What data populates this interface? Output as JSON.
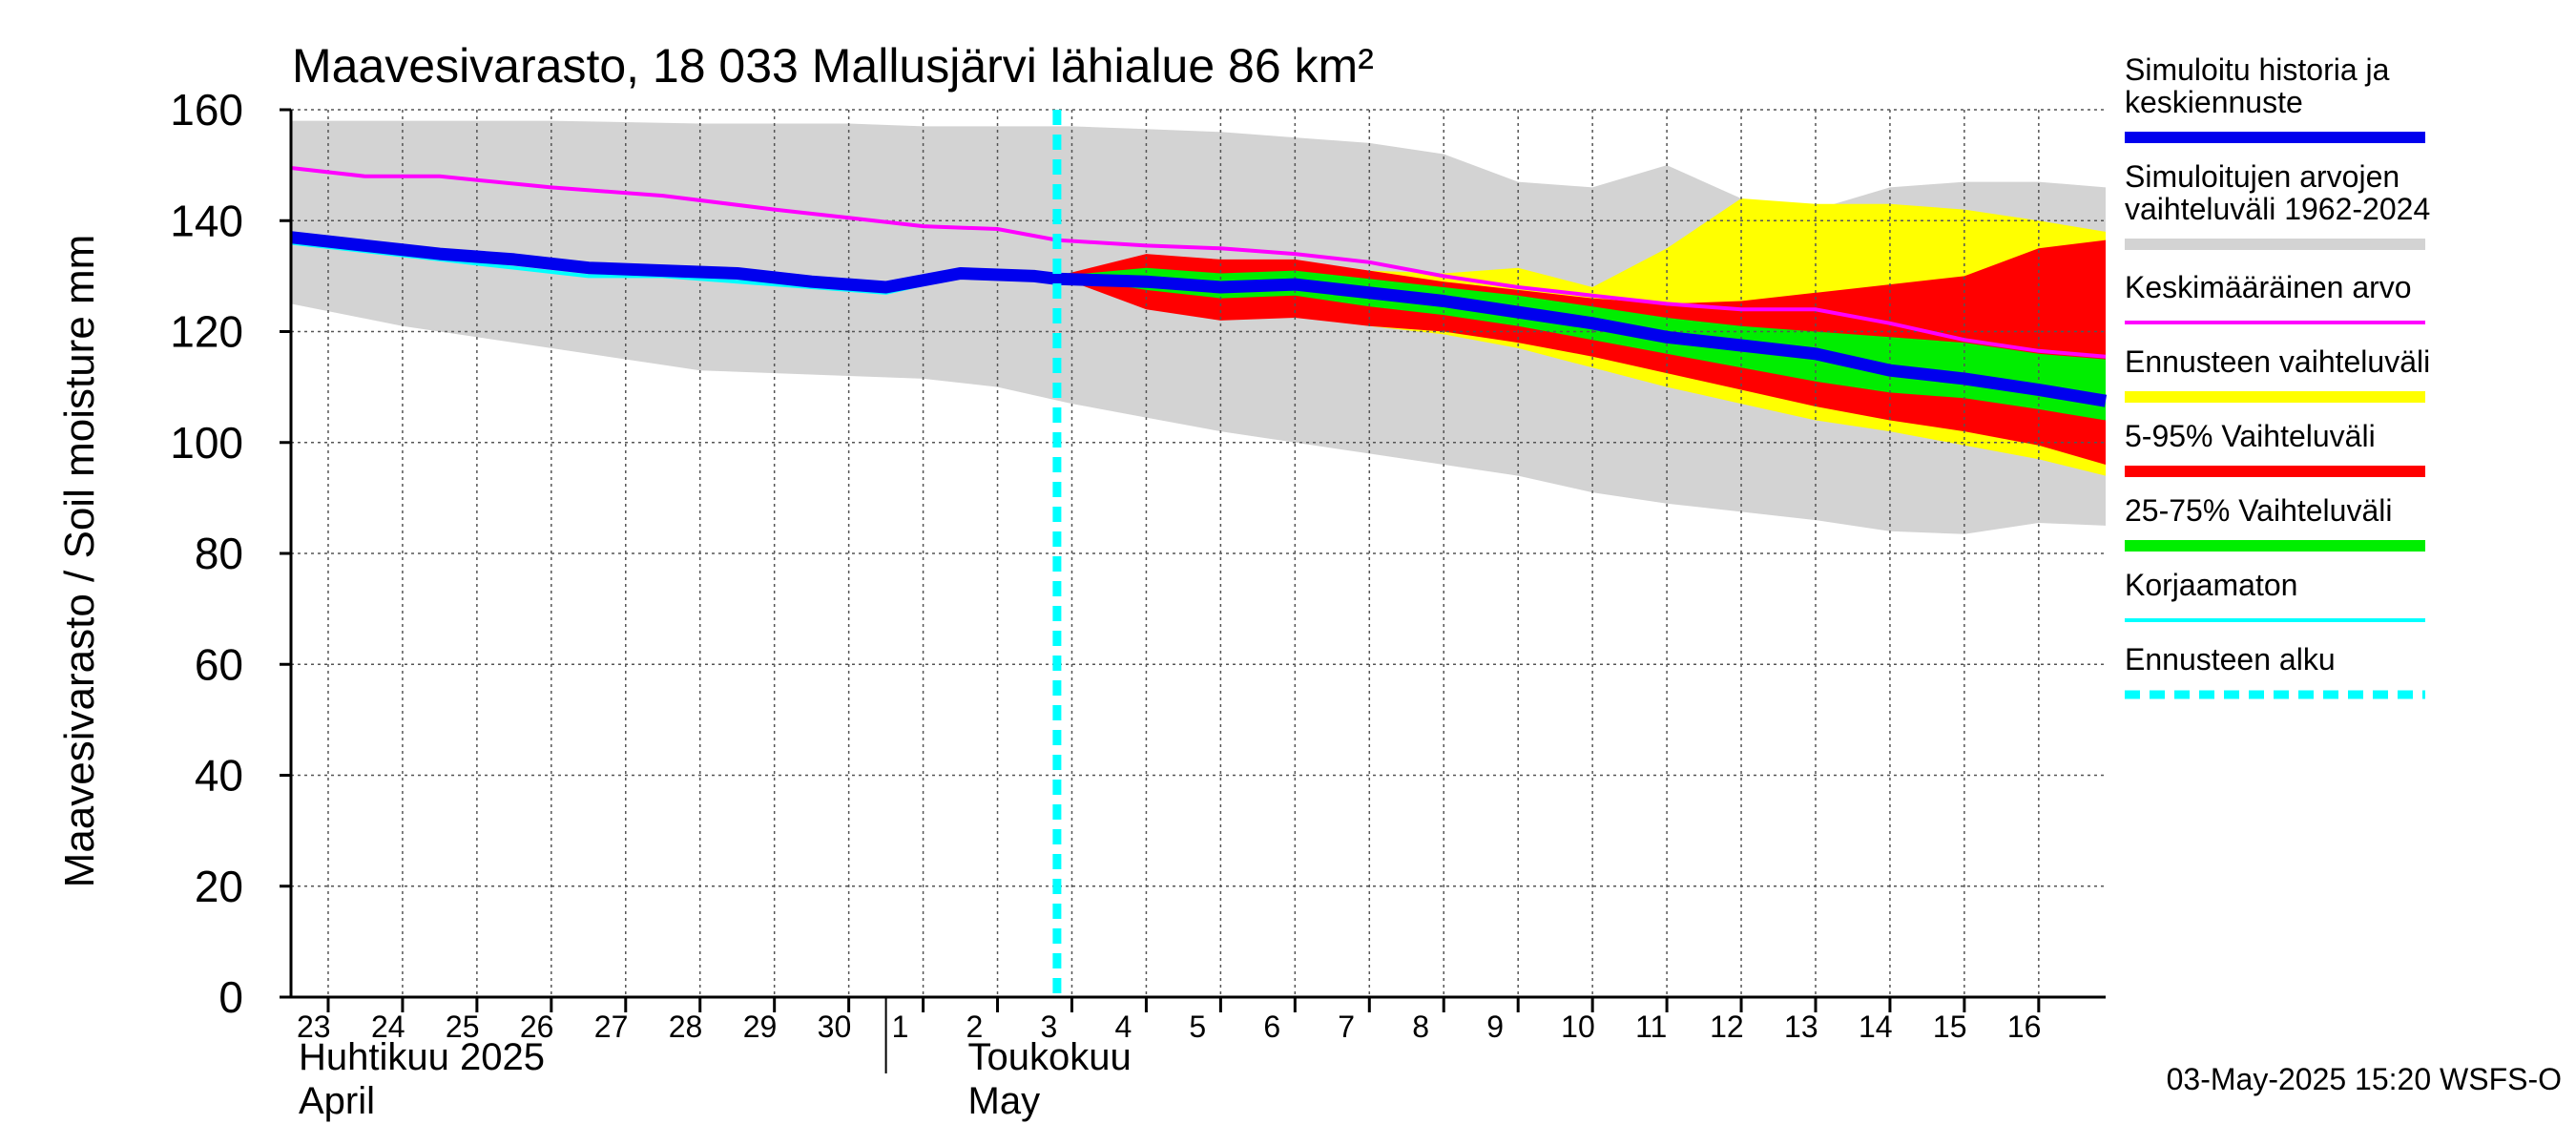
{
  "chart_data": {
    "type": "area",
    "title": "Maavesivarasto, 18 033 Mallusjärvi lähialue 86 km²",
    "ylabel": "Maavesivarasto / Soil moisture   mm",
    "ylim": [
      0,
      160
    ],
    "yticks": [
      0,
      20,
      40,
      60,
      80,
      100,
      120,
      140,
      160
    ],
    "grid": true,
    "x_day_range": [
      22.5,
      46.9
    ],
    "day_ticks": [
      {
        "label": "23",
        "day": 23
      },
      {
        "label": "24",
        "day": 24
      },
      {
        "label": "25",
        "day": 25
      },
      {
        "label": "26",
        "day": 26
      },
      {
        "label": "27",
        "day": 27
      },
      {
        "label": "28",
        "day": 28
      },
      {
        "label": "29",
        "day": 29
      },
      {
        "label": "30",
        "day": 30
      },
      {
        "label": "1",
        "day": 31
      },
      {
        "label": "2",
        "day": 32
      },
      {
        "label": "3",
        "day": 33
      },
      {
        "label": "4",
        "day": 34
      },
      {
        "label": "5",
        "day": 35
      },
      {
        "label": "6",
        "day": 36
      },
      {
        "label": "7",
        "day": 37
      },
      {
        "label": "8",
        "day": 38
      },
      {
        "label": "9",
        "day": 39
      },
      {
        "label": "10",
        "day": 40
      },
      {
        "label": "11",
        "day": 41
      },
      {
        "label": "12",
        "day": 42
      },
      {
        "label": "13",
        "day": 43
      },
      {
        "label": "14",
        "day": 44
      },
      {
        "label": "15",
        "day": 45
      },
      {
        "label": "16",
        "day": 46
      }
    ],
    "month_labels": [
      {
        "line1": "Huhtikuu  2025",
        "line2": "April",
        "day": 22.5
      },
      {
        "line1": "Toukokuu",
        "line2": "May",
        "day": 31.5
      }
    ],
    "month_divider_day": 30.5,
    "forecast_start_day": 32.8,
    "series": {
      "historical_range": {
        "name": "Simuloitujen arvojen vaihteluväli 1962-2024",
        "color": "#d3d3d3",
        "x": [
          22.5,
          24,
          26,
          28,
          30,
          31,
          32,
          33,
          34,
          35,
          36,
          37,
          38,
          39,
          40,
          41,
          42,
          43,
          44,
          45,
          46,
          46.9
        ],
        "upper": [
          158,
          158,
          158,
          157.5,
          157.5,
          157,
          157,
          157,
          156.5,
          156,
          155,
          154,
          152,
          147,
          146,
          150,
          144,
          142,
          146,
          147,
          147,
          146
        ],
        "lower": [
          125,
          121,
          117,
          113,
          112,
          111.5,
          110,
          107,
          104.5,
          102,
          100,
          98,
          96,
          94,
          91,
          89,
          87.5,
          86,
          84,
          83.5,
          85.5,
          85
        ]
      },
      "forecast_range": {
        "name": "Ennusteen vaihteluväli",
        "color": "#ffff00",
        "x": [
          32.8,
          34,
          35,
          36,
          37,
          38,
          39,
          40,
          41,
          42,
          43,
          44,
          45,
          46,
          46.9
        ],
        "upper": [
          130,
          133,
          133,
          132,
          131,
          130.5,
          131.5,
          128,
          135,
          144,
          143,
          143,
          142,
          140,
          138
        ],
        "lower": [
          130,
          126,
          124,
          123,
          121,
          119.5,
          117,
          113.5,
          110,
          107,
          104,
          102,
          99.5,
          97,
          94
        ]
      },
      "range_5_95": {
        "name": "5-95% Vaihteluväli",
        "color": "#ff0000",
        "x": [
          32.8,
          34,
          35,
          36,
          37,
          38,
          39,
          40,
          41,
          42,
          43,
          44,
          45,
          46,
          46.9
        ],
        "upper": [
          130,
          134,
          133,
          133,
          131,
          129,
          127.5,
          126,
          125,
          125.5,
          127,
          128.5,
          130,
          135,
          136.5
        ],
        "lower": [
          130,
          124,
          122,
          122.5,
          121,
          120,
          118,
          115.5,
          112.5,
          109.5,
          106.5,
          104,
          102,
          99.5,
          96
        ]
      },
      "range_25_75": {
        "name": "25-75% Vaihteluväli",
        "color": "#00ee00",
        "x": [
          32.8,
          34,
          35,
          36,
          37,
          38,
          39,
          40,
          41,
          42,
          43,
          44,
          45,
          46,
          46.9
        ],
        "upper": [
          130,
          131.5,
          130.5,
          131,
          129.5,
          128,
          126.5,
          124.5,
          122.5,
          121,
          120,
          119,
          118,
          116,
          115
        ],
        "lower": [
          130,
          127.5,
          126,
          126.5,
          124.5,
          123,
          121,
          118.5,
          116,
          113.5,
          111,
          109,
          108,
          106,
          104
        ]
      },
      "average": {
        "name": "Keskimääräinen arvo",
        "color": "#ff00ff",
        "x": [
          22.5,
          23.5,
          24.5,
          26,
          27.5,
          29,
          30,
          31,
          32,
          32.8,
          34,
          35,
          36,
          37,
          38,
          39,
          40,
          41,
          42,
          43,
          44,
          45,
          46,
          46.9
        ],
        "y": [
          149.5,
          148,
          148,
          146,
          144.5,
          142,
          140.5,
          139,
          138.5,
          136.5,
          135.5,
          135,
          134,
          132.5,
          130,
          128,
          126.5,
          125,
          124,
          124,
          121.5,
          118.5,
          116.5,
          115.5
        ]
      },
      "uncorrected": {
        "name": "Korjaamaton",
        "color": "#00ffff",
        "x": [
          22.5,
          23.5,
          24.5,
          25.5,
          26.5,
          27.5,
          28.5,
          29.5,
          30.5,
          31.5,
          32.5,
          32.8
        ],
        "y": [
          136,
          134.5,
          133,
          131.5,
          130,
          130,
          129,
          128,
          127,
          130,
          129.5,
          129.5
        ]
      },
      "simulated": {
        "name": "Simuloitu historia ja keskiennuste",
        "color": "#0000ee",
        "x": [
          22.5,
          23.5,
          24.5,
          25.5,
          26.5,
          27.5,
          28.5,
          29.5,
          30.5,
          31.5,
          32.5,
          32.8,
          34,
          35,
          36,
          37,
          38,
          39,
          40,
          41,
          42,
          43,
          44,
          45,
          46,
          46.9
        ],
        "y": [
          137,
          135.5,
          134,
          133,
          131.5,
          131,
          130.5,
          129,
          128,
          130.5,
          130,
          129.5,
          129,
          128,
          128.5,
          127,
          125.5,
          123.5,
          121.5,
          119,
          117.5,
          116,
          113,
          111.5,
          109.5,
          107.5
        ]
      }
    },
    "legend": [
      {
        "label": "Simuloitu historia ja keskiennuste",
        "color": "#0000ee",
        "style": "thick"
      },
      {
        "label": "Simuloitujen arvojen vaihteluväli 1962-2024",
        "color": "#d3d3d3",
        "style": "thick"
      },
      {
        "label": "Keskimääräinen arvo",
        "color": "#ff00ff",
        "style": "thin"
      },
      {
        "label": "Ennusteen vaihteluväli",
        "color": "#ffff00",
        "style": "thick"
      },
      {
        "label": "5-95% Vaihteluväli",
        "color": "#ff0000",
        "style": "thick"
      },
      {
        "label": "25-75% Vaihteluväli",
        "color": "#00ee00",
        "style": "thick"
      },
      {
        "label": "Korjaamaton",
        "color": "#00ffff",
        "style": "thin"
      },
      {
        "label": "Ennusteen alku",
        "color": "#00ffff",
        "style": "dashed"
      }
    ],
    "footer": "03-May-2025 15:20 WSFS-O"
  }
}
